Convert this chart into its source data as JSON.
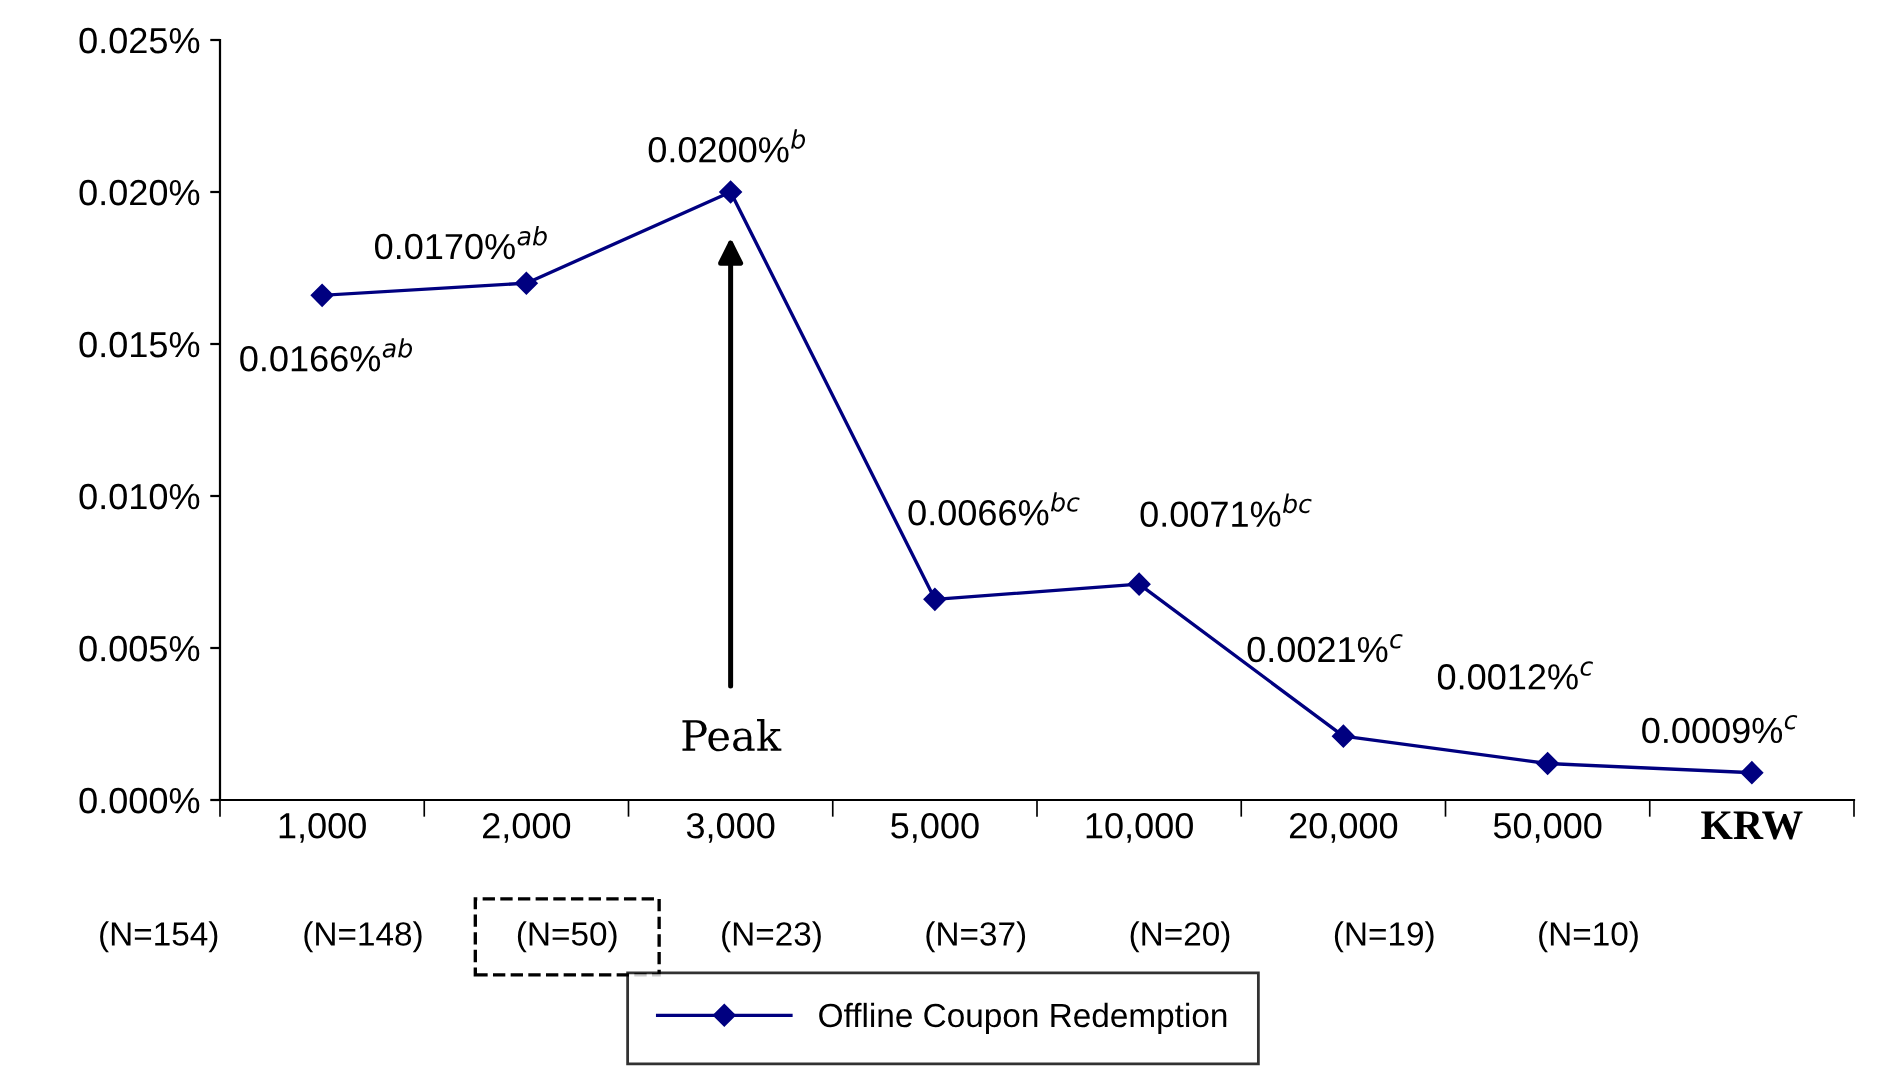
{
  "chart_data": {
    "type": "line",
    "categories": [
      "1,000",
      "2,000",
      "3,000",
      "5,000",
      "10,000",
      "20,000",
      "50,000",
      "KRW"
    ],
    "series": [
      {
        "name": "Offline Coupon Redemption",
        "color": "#000080",
        "values": [
          0.0166,
          0.017,
          0.02,
          0.0066,
          0.0071,
          0.0021,
          0.0012,
          0.0009
        ],
        "value_labels": [
          "0.0166%$^{ab}$",
          "0.0170%$^{ab}$",
          "0.0200%$^{b}$",
          "0.0066%$^{bc}$",
          "0.0071%$^{bc}$",
          "0.0021%$^{c}$",
          "0.0012%$^{c}$",
          "0.0009%$^{c}$"
        ]
      }
    ],
    "ylim": [
      0,
      0.025
    ],
    "yticks": [
      {
        "value": 0,
        "label": "0.000%"
      },
      {
        "value": 0.005,
        "label": "0.005%"
      },
      {
        "value": 0.01,
        "label": "0.010%"
      },
      {
        "value": 0.015,
        "label": "0.015%"
      },
      {
        "value": 0.02,
        "label": "0.020%"
      },
      {
        "value": 0.025,
        "label": "0.025%"
      }
    ],
    "marker": "diamond",
    "line_style": "solid",
    "grid": false,
    "legend": "bottom",
    "annotations": [
      "Peak",
      "(N=154)",
      "(N=148)",
      "(N=50)",
      "(N=23)",
      "(N=37)",
      "(N=20)",
      "(N=19)",
      "(N=10)"
    ]
  }
}
